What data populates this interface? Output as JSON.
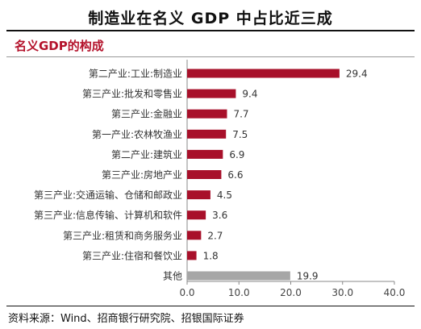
{
  "header": {
    "title": "制造业在名义 GDP 中占比近三成",
    "subtitle": "名义GDP的构成"
  },
  "footer": {
    "source": "资料来源：Wind、招商银行研究院、招银国际证券"
  },
  "colors": {
    "bar_main": "#a8102a",
    "bar_other": "#a6a6a6",
    "subtitle": "#b4122b",
    "axis": "#888888"
  },
  "chart_data": {
    "type": "bar",
    "orientation": "horizontal",
    "categories": [
      "第二产业:工业:制造业",
      "第三产业:批发和零售业",
      "第三产业:金融业",
      "第一产业:农林牧渔业",
      "第二产业:建筑业",
      "第三产业:房地产业",
      "第三产业:交通运输、仓储和邮政业",
      "第三产业:信息传输、计算机和软件",
      "第三产业:租赁和商务服务业",
      "第三产业:住宿和餐饮业",
      "其他"
    ],
    "values": [
      29.4,
      9.4,
      7.7,
      7.5,
      6.9,
      6.6,
      4.5,
      3.6,
      2.7,
      1.8,
      19.9
    ],
    "value_labels": [
      "29.4",
      "9.4",
      "7.7",
      "7.5",
      "6.9",
      "6.6",
      "4.5",
      "3.6",
      "2.7",
      "1.8",
      "19.9"
    ],
    "xlim": [
      0,
      40
    ],
    "xticks": [
      "0.0",
      "10.0",
      "20.0",
      "30.0",
      "40.0"
    ],
    "xtick_values": [
      0,
      10,
      20,
      30,
      40
    ],
    "grid": false,
    "legend": "none"
  }
}
